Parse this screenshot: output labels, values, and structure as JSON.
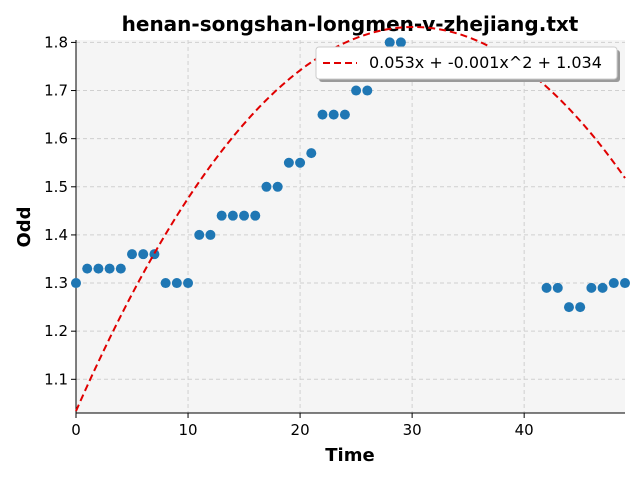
{
  "chart_data": {
    "type": "scatter",
    "title": "henan-songshan-longmen-v-zhejiang.txt",
    "xlabel": "Time",
    "ylabel": "Odd",
    "xlim": [
      0,
      49
    ],
    "ylim": [
      1.03,
      1.805
    ],
    "xticks": [
      "0",
      "10",
      "20",
      "30",
      "40"
    ],
    "yticks": [
      "1.1",
      "1.2",
      "1.3",
      "1.4",
      "1.5",
      "1.6",
      "1.7",
      "1.8"
    ],
    "grid": true,
    "legend_position": "top-right",
    "point_color": "#1f77b4",
    "series": [
      {
        "x": [
          0,
          1,
          2,
          3,
          4,
          5,
          6,
          7,
          8,
          9,
          10,
          11,
          12,
          13,
          14,
          15,
          16,
          17,
          18,
          19,
          20,
          21,
          22,
          23,
          24,
          25,
          26,
          28,
          29,
          42,
          43,
          44,
          45,
          46,
          47,
          48,
          49
        ],
        "y": [
          1.3,
          1.33,
          1.33,
          1.33,
          1.33,
          1.36,
          1.36,
          1.36,
          1.3,
          1.3,
          1.3,
          1.4,
          1.4,
          1.44,
          1.44,
          1.44,
          1.44,
          1.5,
          1.5,
          1.55,
          1.55,
          1.57,
          1.65,
          1.65,
          1.65,
          1.7,
          1.7,
          1.8,
          1.8,
          1.29,
          1.29,
          1.25,
          1.25,
          1.29,
          1.29,
          1.3,
          1.3
        ]
      }
    ],
    "fit": {
      "name": "0.053x + -0.001x^2 + 1.034",
      "linear_coef": 0.053,
      "quadratic_coef": -0.00088,
      "intercept": 1.034,
      "color": "#e00000",
      "style": "dashed"
    }
  }
}
